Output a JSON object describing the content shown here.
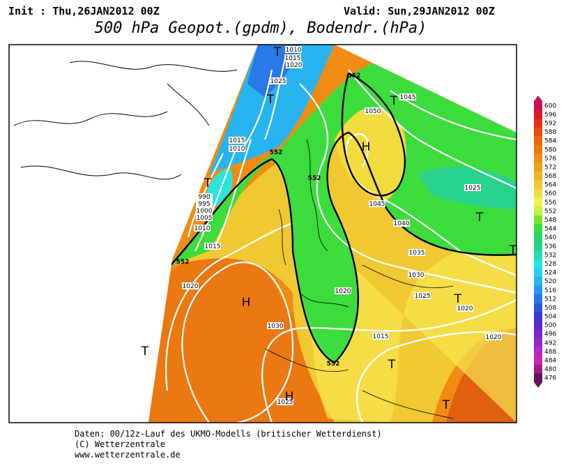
{
  "header": {
    "init": "Init : Thu,26JAN2012 00Z",
    "valid": "Valid: Sun,29JAN2012 00Z",
    "title": "500 hPa Geopot.(gpdm), Bodendr.(hPa)"
  },
  "colorbar": {
    "labels": [
      "600",
      "596",
      "592",
      "588",
      "584",
      "580",
      "576",
      "572",
      "568",
      "564",
      "560",
      "556",
      "552",
      "548",
      "544",
      "540",
      "536",
      "532",
      "528",
      "524",
      "520",
      "516",
      "512",
      "508",
      "504",
      "500",
      "496",
      "492",
      "488",
      "484",
      "480",
      "476"
    ],
    "colors": [
      "#c80f5a",
      "#dc1e28",
      "#e63214",
      "#ec4a10",
      "#f06410",
      "#f07810",
      "#f08c14",
      "#f0a01a",
      "#f0b428",
      "#f0c832",
      "#f0dc3c",
      "#f5f050",
      "#c8f03c",
      "#78e632",
      "#3cdc3c",
      "#28d264",
      "#28d28c",
      "#28dcb4",
      "#28e6dc",
      "#28d2f0",
      "#28b4f0",
      "#2896f0",
      "#2878e6",
      "#285adc",
      "#3c3cd2",
      "#5a28c8",
      "#7828c8",
      "#9628c8",
      "#b428c8",
      "#c828b4",
      "#a01e8c",
      "#64145a"
    ]
  },
  "isobar_labels": [
    "1010",
    "1015",
    "1020",
    "1025",
    "1045",
    "1050",
    "1015",
    "1010",
    "990",
    "995",
    "1000",
    "1005",
    "1010",
    "1015",
    "1025",
    "1045",
    "1040",
    "1035",
    "1030",
    "1025",
    "1020",
    "1020",
    "1030",
    "1015",
    "1020",
    "1020",
    "1025"
  ],
  "geopotential_labels": [
    "552",
    "552",
    "552",
    "552",
    "552"
  ],
  "pressure_centers": [
    "T",
    "T",
    "T",
    "H",
    "T",
    "H",
    "T",
    "T",
    "T",
    "T",
    "T",
    "H",
    "T"
  ],
  "footer": [
    "Daten: 00/12z-Lauf des UKMO-Modells (britischer Wetterdienst)",
    "(C) Wetterzentrale",
    "www.wetterzentrale.de"
  ]
}
